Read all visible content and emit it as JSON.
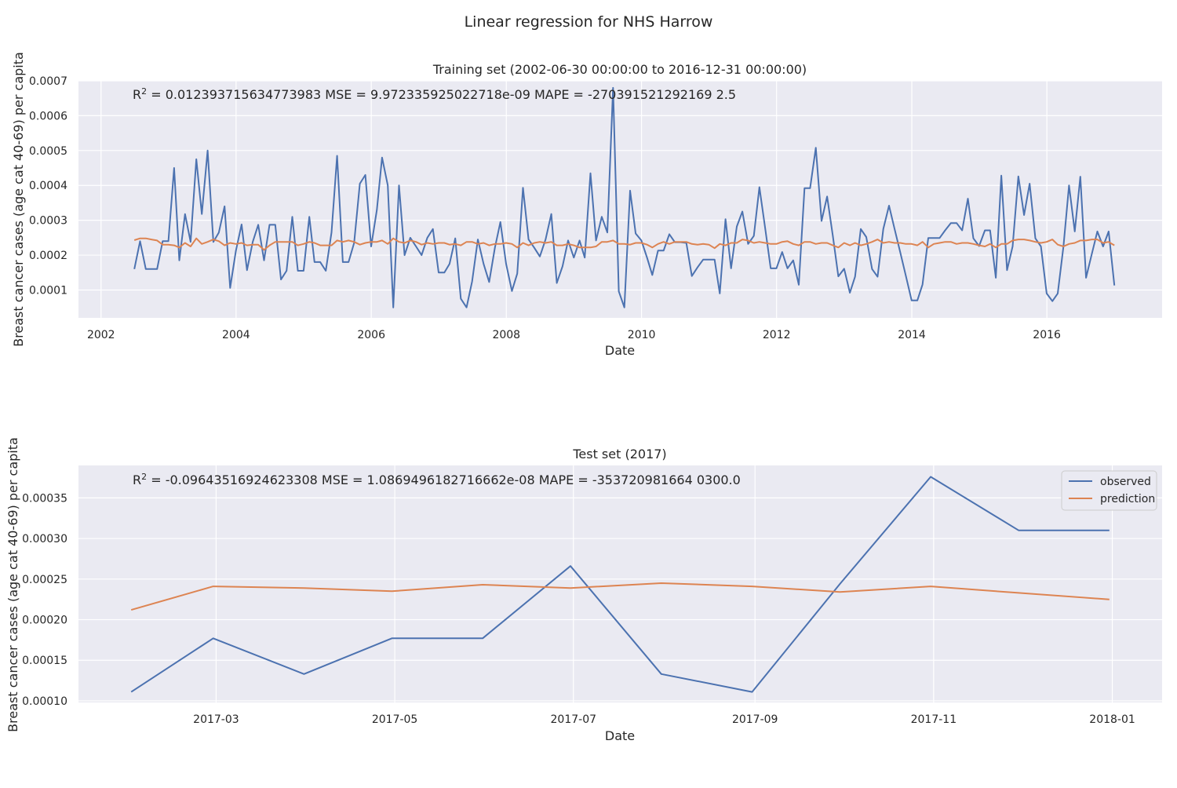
{
  "figure": {
    "title": "Linear regression for NHS Harrow"
  },
  "colors": {
    "observed": "#4c72b0",
    "prediction": "#dd8452",
    "axes_bg": "#eaeaf2",
    "grid": "#ffffff"
  },
  "chart_data": [
    {
      "type": "line",
      "title": "Training set (2002-06-30 00:00:00 to 2016-12-31 00:00:00)",
      "xlabel": "Date",
      "ylabel": "Breast cancer cases (age cat 40-69) per capita",
      "xlim": [
        "2001-09-01",
        "2017-09-15"
      ],
      "ylim": [
        2e-05,
        0.0007
      ],
      "xticks": [
        "2002",
        "2004",
        "2006",
        "2008",
        "2010",
        "2012",
        "2014",
        "2016"
      ],
      "yticks": [
        "0.0001",
        "0.0002",
        "0.0003",
        "0.0004",
        "0.0005",
        "0.0006",
        "0.0007"
      ],
      "grid": true,
      "legend": false,
      "metrics": {
        "r2_label": "R",
        "r2_sup": "2",
        "r2_text": " = 0.012393715634773983  MSE = 9.972335925022718e-09  MAPE = -270391521292169 2.5"
      },
      "x": {
        "start": "2002-06-30",
        "end": "2016-12-31",
        "step": "1 month",
        "count": 175
      },
      "series": [
        {
          "name": "observed",
          "values": [
            0.00016,
            0.00024,
            0.00016,
            0.00016,
            0.00016,
            0.00024,
            0.00024,
            0.00045,
            0.000185,
            0.000318,
            0.000238,
            0.000475,
            0.000318,
            0.0005,
            0.000238,
            0.000265,
            0.00034,
            0.000106,
            0.000212,
            0.000288,
            0.000157,
            0.000238,
            0.000287,
            0.000185,
            0.000287,
            0.000287,
            0.00013,
            0.000155,
            0.00031,
            0.000155,
            0.000155,
            0.00031,
            0.00018,
            0.00018,
            0.000155,
            0.000265,
            0.000485,
            0.00018,
            0.00018,
            0.000235,
            0.000405,
            0.00043,
            0.000225,
            0.00033,
            0.00048,
            0.0004,
            5e-05,
            0.0004,
            0.0002,
            0.00025,
            0.000225,
            0.0002,
            0.00025,
            0.000275,
            0.00015,
            0.00015,
            0.000175,
            0.000248,
            7.5e-05,
            5e-05,
            0.000125,
            0.000245,
            0.000175,
            0.000123,
            0.000221,
            0.000295,
            0.000175,
            9.7e-05,
            0.000147,
            0.000393,
            0.000245,
            0.000221,
            0.000196,
            0.000245,
            0.000318,
            0.00012,
            0.000168,
            0.000242,
            0.000193,
            0.000242,
            0.000193,
            0.000435,
            0.000242,
            0.00031,
            0.000265,
            0.00068,
            9.6e-05,
            5e-05,
            0.000385,
            0.000262,
            0.000242,
            0.000192,
            0.000143,
            0.000213,
            0.000213,
            0.00026,
            0.000237,
            0.000237,
            0.000235,
            0.00014,
            0.000165,
            0.000187,
            0.000187,
            0.000187,
            9e-05,
            0.000303,
            0.000162,
            0.000282,
            0.000325,
            0.000232,
            0.000255,
            0.000395,
            0.000278,
            0.000162,
            0.000162,
            0.000209,
            0.000162,
            0.000185,
            0.000115,
            0.000392,
            0.000392,
            0.000508,
            0.000298,
            0.000368,
            0.000255,
            0.000139,
            0.000161,
            9.2e-05,
            0.000138,
            0.000275,
            0.000252,
            0.00016,
            0.000138,
            0.000275,
            0.000342,
            0.000275,
            0.000207,
            0.00014,
            7e-05,
            7e-05,
            0.000116,
            0.000249,
            0.000249,
            0.000249,
            0.000271,
            0.000292,
            0.000292,
            0.000271,
            0.000362,
            0.000248,
            0.000226,
            0.000271,
            0.000271,
            0.000135,
            0.000428,
            0.000157,
            0.000225,
            0.000426,
            0.000315,
            0.000405,
            0.000248,
            0.000225,
            9e-05,
            6.8e-05,
            9e-05,
            0.000225,
            0.0004,
            0.000268,
            0.000425,
            0.000135,
            0.000203,
            0.000268,
            0.000225,
            0.000268,
            0.000113
          ]
        },
        {
          "name": "prediction",
          "values": [
            0.000243,
            0.000248,
            0.000248,
            0.000245,
            0.000242,
            0.00023,
            0.00023,
            0.000228,
            0.000222,
            0.000235,
            0.000225,
            0.000248,
            0.000232,
            0.000238,
            0.000245,
            0.00024,
            0.000228,
            0.000235,
            0.000232,
            0.000235,
            0.000228,
            0.00023,
            0.00023,
            0.000215,
            0.000228,
            0.000238,
            0.000238,
            0.000238,
            0.000238,
            0.000228,
            0.000232,
            0.000238,
            0.000235,
            0.000228,
            0.000228,
            0.000228,
            0.000242,
            0.000238,
            0.000242,
            0.000238,
            0.00023,
            0.000235,
            0.000238,
            0.000238,
            0.000242,
            0.000232,
            0.000248,
            0.000238,
            0.000235,
            0.000242,
            0.000238,
            0.00023,
            0.000235,
            0.000232,
            0.000235,
            0.000235,
            0.00023,
            0.000232,
            0.000228,
            0.000238,
            0.000238,
            0.000232,
            0.000235,
            0.000228,
            0.000232,
            0.000232,
            0.000235,
            0.000232,
            0.000222,
            0.000235,
            0.000228,
            0.000235,
            0.000238,
            0.000235,
            0.000238,
            0.000228,
            0.000228,
            0.000232,
            0.000228,
            0.000222,
            0.000222,
            0.000222,
            0.000225,
            0.000238,
            0.000238,
            0.000242,
            0.000232,
            0.000232,
            0.00023,
            0.000235,
            0.000235,
            0.00023,
            0.000222,
            0.000232,
            0.000238,
            0.000232,
            0.000238,
            0.000238,
            0.000238,
            0.000232,
            0.00023,
            0.000232,
            0.00023,
            0.00022,
            0.000232,
            0.000228,
            0.000235,
            0.000235,
            0.000245,
            0.000242,
            0.000235,
            0.000238,
            0.000235,
            0.000232,
            0.000232,
            0.000238,
            0.00024,
            0.000232,
            0.000228,
            0.000238,
            0.000238,
            0.000232,
            0.000235,
            0.000235,
            0.000228,
            0.000222,
            0.000235,
            0.000228,
            0.000235,
            0.000228,
            0.000232,
            0.000238,
            0.000245,
            0.000235,
            0.000238,
            0.000235,
            0.000235,
            0.000232,
            0.000232,
            0.000228,
            0.000238,
            0.000222,
            0.000232,
            0.000235,
            0.000238,
            0.000238,
            0.000232,
            0.000235,
            0.000235,
            0.000232,
            0.000228,
            0.000225,
            0.000232,
            0.000222,
            0.000232,
            0.000232,
            0.000242,
            0.000245,
            0.000245,
            0.000242,
            0.000238,
            0.000235,
            0.000238,
            0.000245,
            0.00023,
            0.000225,
            0.000232,
            0.000235,
            0.000242,
            0.000242,
            0.000245,
            0.000245,
            0.000235,
            0.000238,
            0.000228,
            0.000235,
            0.000218
          ]
        }
      ]
    },
    {
      "type": "line",
      "title": "Test set (2017)",
      "xlabel": "Date",
      "ylabel": "Breast cancer cases (age cat 40-69) per capita",
      "xlim": [
        "2017-01-13",
        "2018-01-18"
      ],
      "ylim": [
        9.8e-05,
        0.00039
      ],
      "xticks": [
        "2017-03",
        "2017-05",
        "2017-07",
        "2017-09",
        "2017-11",
        "2018-01"
      ],
      "yticks": [
        "0.00010",
        "0.00015",
        "0.00020",
        "0.00025",
        "0.00030",
        "0.00035"
      ],
      "grid": true,
      "legend": "top-right",
      "metrics": {
        "r2_label": "R",
        "r2_sup": "2",
        "r2_text": " = -0.09643516924623308  MSE = 1.0869496182716662e-08  MAPE = -353720981664 0300.0"
      },
      "x": [
        "2017-01-31",
        "2017-02-28",
        "2017-03-31",
        "2017-04-30",
        "2017-05-31",
        "2017-06-30",
        "2017-07-31",
        "2017-08-31",
        "2017-09-30",
        "2017-10-31",
        "2017-11-30",
        "2017-12-31"
      ],
      "series": [
        {
          "name": "observed",
          "values": [
            0.000111,
            0.000177,
            0.000133,
            0.000177,
            0.000177,
            0.000266,
            0.000133,
            0.000111,
            0.000244,
            0.000376,
            0.00031,
            0.00031
          ]
        },
        {
          "name": "prediction",
          "values": [
            0.000212,
            0.000241,
            0.000239,
            0.000235,
            0.000243,
            0.000239,
            0.000245,
            0.000241,
            0.000234,
            0.000241,
            0.000233,
            0.000225
          ]
        }
      ]
    }
  ]
}
